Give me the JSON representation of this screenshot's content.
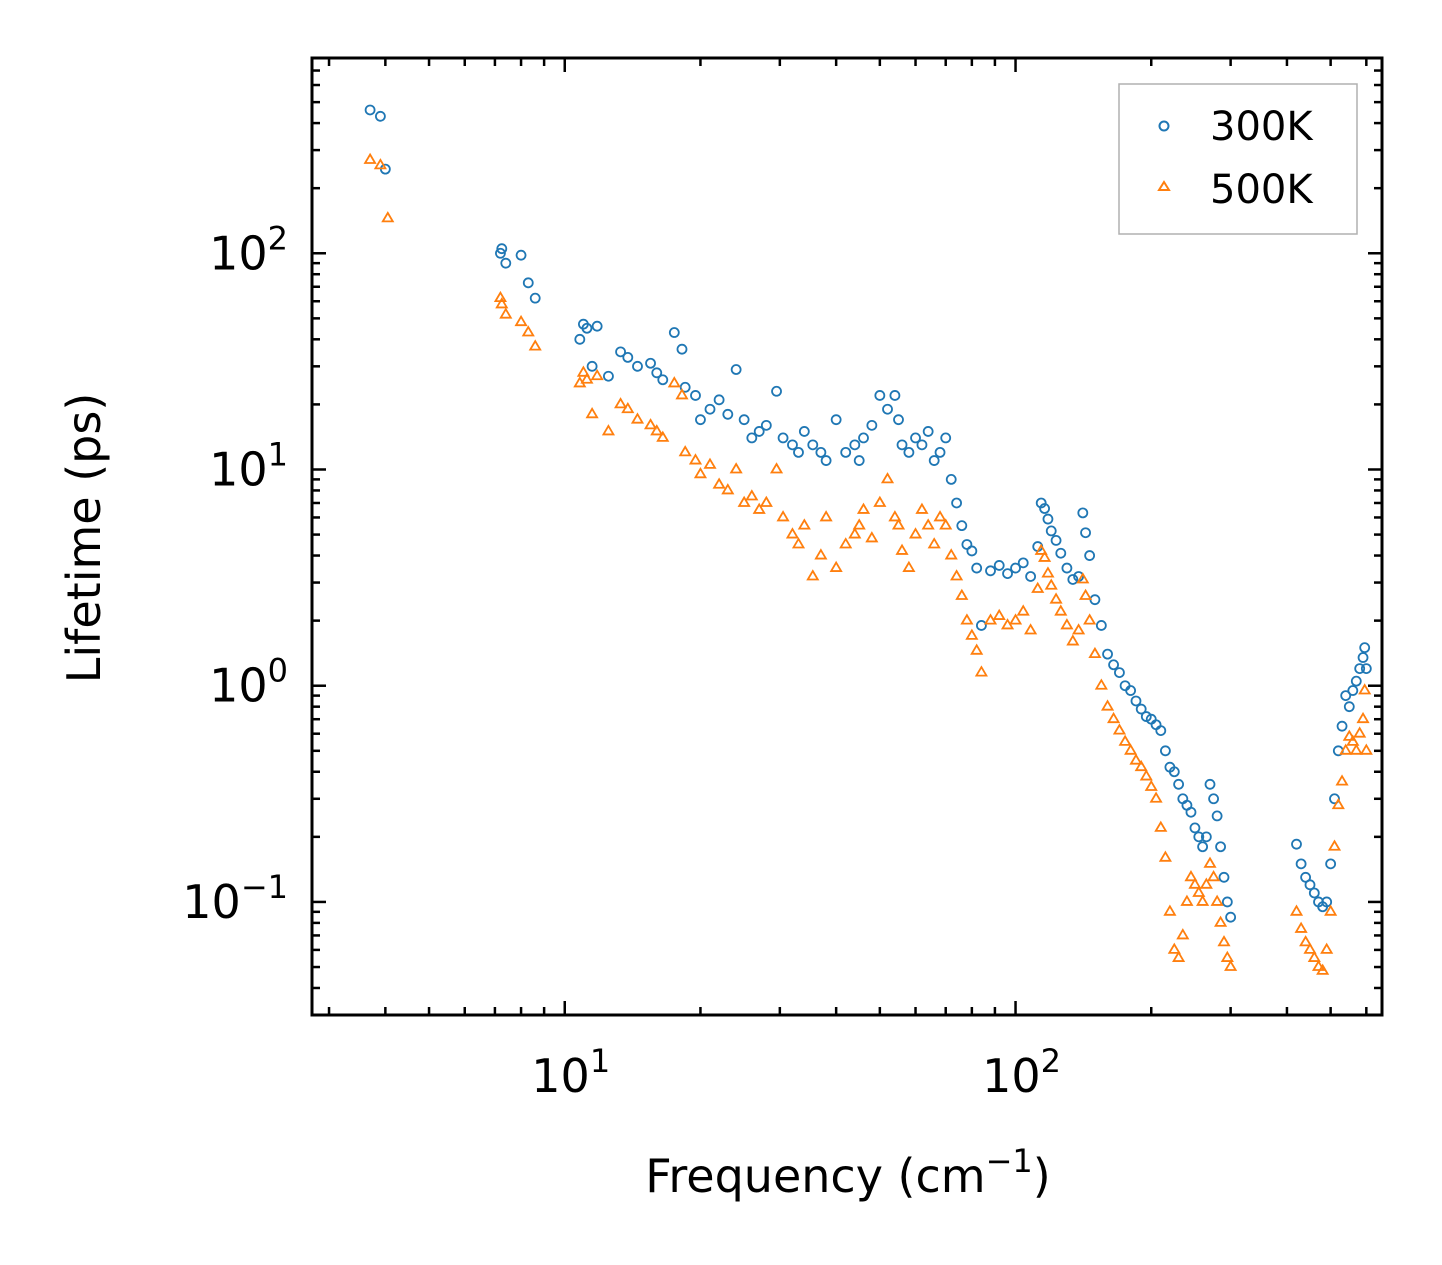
{
  "chart_data": {
    "type": "scatter",
    "scale": {
      "x": "log",
      "y": "log"
    },
    "xlabel": {
      "base": "Frequency (cm",
      "sup": "−1",
      "tail": ")"
    },
    "ylabel": "Lifetime (ps)",
    "xlim": [
      2.75,
      650
    ],
    "ylim": [
      0.03,
      800
    ],
    "x_ticks": [
      {
        "value": 10,
        "base": "10",
        "exp": "1"
      },
      {
        "value": 100,
        "base": "10",
        "exp": "2"
      }
    ],
    "y_ticks": [
      {
        "value": 0.1,
        "base": "10",
        "exp": "−1"
      },
      {
        "value": 1,
        "base": "10",
        "exp": "0"
      },
      {
        "value": 10,
        "base": "10",
        "exp": "1"
      },
      {
        "value": 100,
        "base": "10",
        "exp": "2"
      }
    ],
    "legend_position": "top-right",
    "series": [
      {
        "name": "300K",
        "marker": "circle",
        "color": "#1f77b4",
        "points": [
          [
            3.7,
            460
          ],
          [
            3.9,
            430
          ],
          [
            4.0,
            245
          ],
          [
            7.2,
            100
          ],
          [
            7.25,
            105
          ],
          [
            7.4,
            90
          ],
          [
            8.0,
            98
          ],
          [
            8.3,
            73
          ],
          [
            8.6,
            62
          ],
          [
            10.8,
            40
          ],
          [
            11.0,
            47
          ],
          [
            11.2,
            45
          ],
          [
            11.5,
            30
          ],
          [
            11.8,
            46
          ],
          [
            12.5,
            27
          ],
          [
            13.3,
            35
          ],
          [
            13.8,
            33
          ],
          [
            14.5,
            30
          ],
          [
            15.5,
            31
          ],
          [
            16.0,
            28
          ],
          [
            16.5,
            26
          ],
          [
            17.5,
            43
          ],
          [
            18.2,
            36
          ],
          [
            18.5,
            24
          ],
          [
            19.5,
            22
          ],
          [
            20.0,
            17
          ],
          [
            21.0,
            19
          ],
          [
            22.0,
            21
          ],
          [
            23.0,
            18
          ],
          [
            24.0,
            29
          ],
          [
            25.0,
            17
          ],
          [
            26.0,
            14
          ],
          [
            27.0,
            15
          ],
          [
            28.0,
            16
          ],
          [
            29.5,
            23
          ],
          [
            30.5,
            14
          ],
          [
            32.0,
            13
          ],
          [
            33.0,
            12
          ],
          [
            34.0,
            15
          ],
          [
            35.5,
            13
          ],
          [
            37.0,
            12
          ],
          [
            38.0,
            11
          ],
          [
            40.0,
            17
          ],
          [
            42.0,
            12
          ],
          [
            44.0,
            13
          ],
          [
            45.0,
            11
          ],
          [
            46.0,
            14
          ],
          [
            48.0,
            16
          ],
          [
            50.0,
            22
          ],
          [
            52.0,
            19
          ],
          [
            54.0,
            22
          ],
          [
            55.0,
            17
          ],
          [
            56.0,
            13
          ],
          [
            58.0,
            12
          ],
          [
            60.0,
            14
          ],
          [
            62.0,
            13
          ],
          [
            64.0,
            15
          ],
          [
            66.0,
            11
          ],
          [
            68.0,
            12
          ],
          [
            70.0,
            14
          ],
          [
            72.0,
            9
          ],
          [
            74.0,
            7
          ],
          [
            76.0,
            5.5
          ],
          [
            78.0,
            4.5
          ],
          [
            80.0,
            4.2
          ],
          [
            82.0,
            3.5
          ],
          [
            84.0,
            1.9
          ],
          [
            88.0,
            3.4
          ],
          [
            92.0,
            3.6
          ],
          [
            96.0,
            3.3
          ],
          [
            100.0,
            3.5
          ],
          [
            104.0,
            3.7
          ],
          [
            108.0,
            3.2
          ],
          [
            112.0,
            4.4
          ],
          [
            114.0,
            7.0
          ],
          [
            116.0,
            6.6
          ],
          [
            118.0,
            5.9
          ],
          [
            120.0,
            5.2
          ],
          [
            123.0,
            4.7
          ],
          [
            126.0,
            4.1
          ],
          [
            130.0,
            3.5
          ],
          [
            134.0,
            3.1
          ],
          [
            138.0,
            3.2
          ],
          [
            141.0,
            6.3
          ],
          [
            143.0,
            5.1
          ],
          [
            146.0,
            4.0
          ],
          [
            150.0,
            2.5
          ],
          [
            155.0,
            1.9
          ],
          [
            160.0,
            1.4
          ],
          [
            165.0,
            1.25
          ],
          [
            170.0,
            1.15
          ],
          [
            175.0,
            1.0
          ],
          [
            180.0,
            0.95
          ],
          [
            185.0,
            0.85
          ],
          [
            190.0,
            0.78
          ],
          [
            195.0,
            0.72
          ],
          [
            200.0,
            0.7
          ],
          [
            205.0,
            0.66
          ],
          [
            210.0,
            0.62
          ],
          [
            215.0,
            0.5
          ],
          [
            220.0,
            0.42
          ],
          [
            225.0,
            0.4
          ],
          [
            230.0,
            0.35
          ],
          [
            235.0,
            0.3
          ],
          [
            240.0,
            0.28
          ],
          [
            245.0,
            0.26
          ],
          [
            250.0,
            0.22
          ],
          [
            255.0,
            0.2
          ],
          [
            260.0,
            0.18
          ],
          [
            265.0,
            0.2
          ],
          [
            270.0,
            0.35
          ],
          [
            275.0,
            0.3
          ],
          [
            280.0,
            0.25
          ],
          [
            285.0,
            0.18
          ],
          [
            290.0,
            0.13
          ],
          [
            295.0,
            0.1
          ],
          [
            300.0,
            0.085
          ],
          [
            420.0,
            0.185
          ],
          [
            430.0,
            0.15
          ],
          [
            440.0,
            0.13
          ],
          [
            450.0,
            0.12
          ],
          [
            460.0,
            0.11
          ],
          [
            470.0,
            0.1
          ],
          [
            480.0,
            0.095
          ],
          [
            490.0,
            0.1
          ],
          [
            500.0,
            0.15
          ],
          [
            510.0,
            0.3
          ],
          [
            520.0,
            0.5
          ],
          [
            530.0,
            0.65
          ],
          [
            540.0,
            0.9
          ],
          [
            550.0,
            0.8
          ],
          [
            560.0,
            0.95
          ],
          [
            570.0,
            1.05
          ],
          [
            580.0,
            1.2
          ],
          [
            590.0,
            1.35
          ],
          [
            595.0,
            1.5
          ],
          [
            600.0,
            1.2
          ]
        ]
      },
      {
        "name": "500K",
        "marker": "triangle",
        "color": "#ff7f0e",
        "points": [
          [
            3.7,
            270
          ],
          [
            3.9,
            255
          ],
          [
            4.05,
            145
          ],
          [
            7.2,
            62
          ],
          [
            7.25,
            58
          ],
          [
            7.4,
            52
          ],
          [
            8.0,
            48
          ],
          [
            8.3,
            43
          ],
          [
            8.6,
            37
          ],
          [
            10.8,
            25
          ],
          [
            11.0,
            28
          ],
          [
            11.2,
            26
          ],
          [
            11.5,
            18
          ],
          [
            11.8,
            27
          ],
          [
            12.5,
            15
          ],
          [
            13.3,
            20
          ],
          [
            13.8,
            19
          ],
          [
            14.5,
            17
          ],
          [
            15.5,
            16
          ],
          [
            16.0,
            15
          ],
          [
            16.5,
            14
          ],
          [
            17.5,
            25
          ],
          [
            18.2,
            22
          ],
          [
            18.5,
            12
          ],
          [
            19.5,
            11
          ],
          [
            20.0,
            9.5
          ],
          [
            21.0,
            10.5
          ],
          [
            22.0,
            8.5
          ],
          [
            23.0,
            8
          ],
          [
            24.0,
            10
          ],
          [
            25.0,
            7
          ],
          [
            26.0,
            7.5
          ],
          [
            27.0,
            6.5
          ],
          [
            28.0,
            7
          ],
          [
            29.5,
            10
          ],
          [
            30.5,
            6
          ],
          [
            32.0,
            5
          ],
          [
            33.0,
            4.5
          ],
          [
            34.0,
            5.5
          ],
          [
            35.5,
            3.2
          ],
          [
            37.0,
            4.0
          ],
          [
            38.0,
            6
          ],
          [
            40.0,
            3.5
          ],
          [
            42.0,
            4.5
          ],
          [
            44.0,
            5
          ],
          [
            45.0,
            5.5
          ],
          [
            46.0,
            6.5
          ],
          [
            48.0,
            4.8
          ],
          [
            50.0,
            7
          ],
          [
            52.0,
            9
          ],
          [
            54.0,
            6
          ],
          [
            55.0,
            5.5
          ],
          [
            56.0,
            4.2
          ],
          [
            58.0,
            3.5
          ],
          [
            60.0,
            5
          ],
          [
            62.0,
            6.5
          ],
          [
            64.0,
            5.5
          ],
          [
            66.0,
            4.5
          ],
          [
            68.0,
            6
          ],
          [
            70.0,
            5.5
          ],
          [
            72.0,
            4.0
          ],
          [
            74.0,
            3.2
          ],
          [
            76.0,
            2.6
          ],
          [
            78.0,
            2.0
          ],
          [
            80.0,
            1.7
          ],
          [
            82.0,
            1.45
          ],
          [
            84.0,
            1.15
          ],
          [
            88.0,
            2.0
          ],
          [
            92.0,
            2.1
          ],
          [
            96.0,
            1.9
          ],
          [
            100.0,
            2.0
          ],
          [
            104.0,
            2.2
          ],
          [
            108.0,
            1.8
          ],
          [
            112.0,
            2.8
          ],
          [
            114.0,
            4.2
          ],
          [
            116.0,
            3.9
          ],
          [
            118.0,
            3.3
          ],
          [
            120.0,
            2.9
          ],
          [
            123.0,
            2.5
          ],
          [
            126.0,
            2.2
          ],
          [
            130.0,
            1.9
          ],
          [
            134.0,
            1.6
          ],
          [
            138.0,
            1.8
          ],
          [
            141.0,
            3.1
          ],
          [
            143.0,
            2.6
          ],
          [
            146.0,
            2.0
          ],
          [
            150.0,
            1.4
          ],
          [
            155.0,
            1.0
          ],
          [
            160.0,
            0.8
          ],
          [
            165.0,
            0.7
          ],
          [
            170.0,
            0.62
          ],
          [
            175.0,
            0.55
          ],
          [
            180.0,
            0.5
          ],
          [
            185.0,
            0.45
          ],
          [
            190.0,
            0.42
          ],
          [
            195.0,
            0.38
          ],
          [
            200.0,
            0.34
          ],
          [
            205.0,
            0.3
          ],
          [
            210.0,
            0.22
          ],
          [
            215.0,
            0.16
          ],
          [
            220.0,
            0.09
          ],
          [
            225.0,
            0.06
          ],
          [
            230.0,
            0.055
          ],
          [
            235.0,
            0.07
          ],
          [
            240.0,
            0.1
          ],
          [
            245.0,
            0.13
          ],
          [
            250.0,
            0.12
          ],
          [
            255.0,
            0.11
          ],
          [
            260.0,
            0.1
          ],
          [
            265.0,
            0.12
          ],
          [
            270.0,
            0.15
          ],
          [
            275.0,
            0.13
          ],
          [
            280.0,
            0.1
          ],
          [
            285.0,
            0.08
          ],
          [
            290.0,
            0.065
          ],
          [
            295.0,
            0.055
          ],
          [
            300.0,
            0.05
          ],
          [
            420.0,
            0.09
          ],
          [
            430.0,
            0.075
          ],
          [
            440.0,
            0.065
          ],
          [
            450.0,
            0.06
          ],
          [
            460.0,
            0.055
          ],
          [
            470.0,
            0.05
          ],
          [
            480.0,
            0.048
          ],
          [
            490.0,
            0.06
          ],
          [
            500.0,
            0.09
          ],
          [
            510.0,
            0.18
          ],
          [
            520.0,
            0.28
          ],
          [
            530.0,
            0.36
          ],
          [
            540.0,
            0.5
          ],
          [
            550.0,
            0.58
          ],
          [
            560.0,
            0.55
          ],
          [
            570.0,
            0.5
          ],
          [
            580.0,
            0.6
          ],
          [
            590.0,
            0.7
          ],
          [
            595.0,
            0.95
          ],
          [
            600.0,
            0.5
          ]
        ]
      }
    ]
  }
}
